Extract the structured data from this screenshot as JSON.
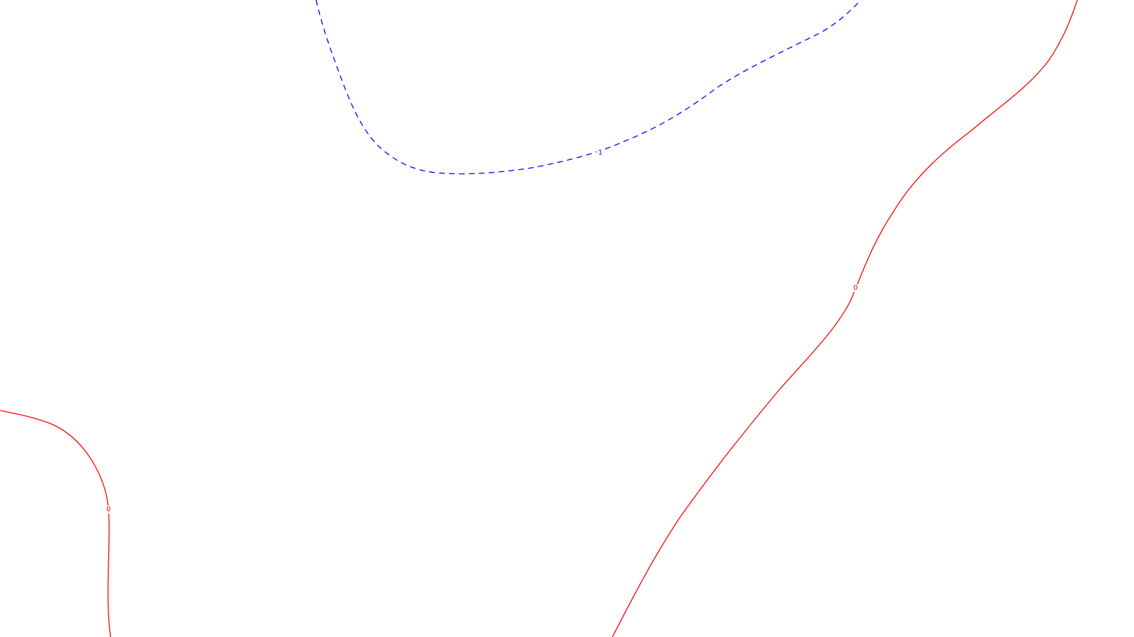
{
  "chart_data": {
    "type": "contour",
    "title": "",
    "xlabel": "",
    "ylabel": "",
    "grid": false,
    "levels": [
      {
        "value": 1,
        "label": "1",
        "color": "#0000ff",
        "style": "dashed",
        "segments": 1
      },
      {
        "value": 0,
        "label": "0",
        "color": "#ff0000",
        "style": "solid",
        "segments": 2
      }
    ]
  }
}
